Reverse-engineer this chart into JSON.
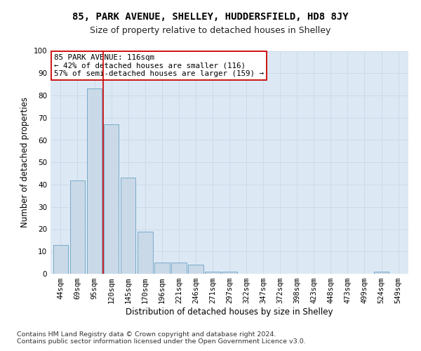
{
  "title1": "85, PARK AVENUE, SHELLEY, HUDDERSFIELD, HD8 8JY",
  "title2": "Size of property relative to detached houses in Shelley",
  "xlabel": "Distribution of detached houses by size in Shelley",
  "ylabel": "Number of detached properties",
  "categories": [
    "44sqm",
    "69sqm",
    "95sqm",
    "120sqm",
    "145sqm",
    "170sqm",
    "196sqm",
    "221sqm",
    "246sqm",
    "271sqm",
    "297sqm",
    "322sqm",
    "347sqm",
    "372sqm",
    "398sqm",
    "423sqm",
    "448sqm",
    "473sqm",
    "499sqm",
    "524sqm",
    "549sqm"
  ],
  "values": [
    13,
    42,
    83,
    67,
    43,
    19,
    5,
    5,
    4,
    1,
    1,
    0,
    0,
    0,
    0,
    0,
    0,
    0,
    0,
    1,
    0
  ],
  "bar_color": "#c9d9e8",
  "bar_edge_color": "#7aaac8",
  "vline_x": 2.5,
  "vline_color": "#cc0000",
  "annotation_line1": "85 PARK AVENUE: 116sqm",
  "annotation_line2": "← 42% of detached houses are smaller (116)",
  "annotation_line3": "57% of semi-detached houses are larger (159) →",
  "annotation_box_color": "#ffffff",
  "annotation_box_edge": "#cc0000",
  "ylim": [
    0,
    100
  ],
  "yticks": [
    0,
    10,
    20,
    30,
    40,
    50,
    60,
    70,
    80,
    90,
    100
  ],
  "grid_color": "#c8d8e8",
  "bg_color": "#dce9f5",
  "footer1": "Contains HM Land Registry data © Crown copyright and database right 2024.",
  "footer2": "Contains public sector information licensed under the Open Government Licence v3.0.",
  "title1_fontsize": 10,
  "title2_fontsize": 9,
  "axis_label_fontsize": 8.5,
  "tick_fontsize": 7.5,
  "annotation_fontsize": 7.8,
  "footer_fontsize": 6.8
}
